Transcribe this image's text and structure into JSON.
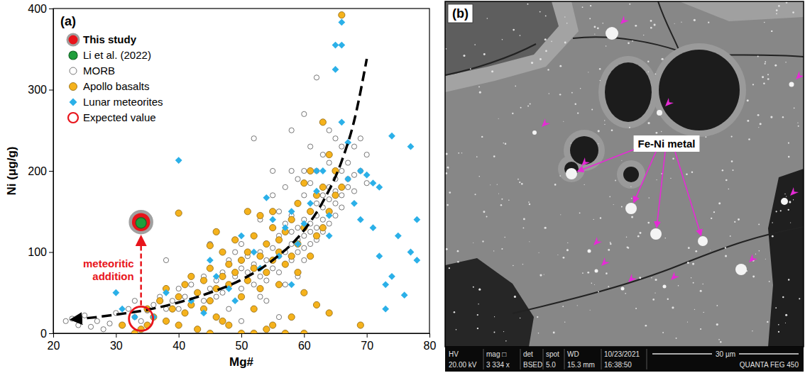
{
  "chart_data": {
    "type": "scatter",
    "panel_label": "(a)",
    "x_label": "Mg#",
    "y_label": "Ni (μg/g)",
    "xlim": [
      20,
      80
    ],
    "ylim": [
      0,
      400
    ],
    "xticks": [
      20,
      30,
      40,
      50,
      60,
      70,
      80
    ],
    "yticks": [
      0,
      100,
      200,
      300,
      400
    ],
    "grid": false,
    "legend": "upper left",
    "series": [
      {
        "name": "This study",
        "color": "#e8141b",
        "marker": "big-circle",
        "x": [
          34
        ],
        "values": [
          137
        ]
      },
      {
        "name": "Li et al. (2022)",
        "color": "#1f9e3c",
        "marker": "medium-circle",
        "x": [
          34
        ],
        "values": [
          136
        ]
      },
      {
        "name": "MORB",
        "color": "#555555",
        "marker": "open-circle",
        "x": [
          22,
          23,
          24,
          25,
          26,
          27,
          28,
          29,
          30,
          31,
          32,
          33,
          34,
          35,
          36,
          37,
          38,
          39,
          40,
          40,
          41,
          42,
          42,
          43,
          44,
          44,
          45,
          45,
          46,
          46,
          47,
          47,
          48,
          48,
          49,
          49,
          50,
          50,
          50,
          51,
          51,
          52,
          52,
          52,
          53,
          53,
          53,
          54,
          54,
          54,
          55,
          55,
          55,
          55,
          56,
          56,
          56,
          56,
          57,
          57,
          57,
          57,
          58,
          58,
          58,
          58,
          58,
          59,
          59,
          59,
          59,
          60,
          60,
          60,
          60,
          60,
          60,
          61,
          61,
          61,
          61,
          61,
          62,
          62,
          62,
          62,
          62,
          63,
          63,
          63,
          63,
          63,
          64,
          64,
          64,
          64,
          64,
          65,
          65,
          65,
          65,
          65,
          66,
          66,
          66,
          66,
          67,
          67,
          67,
          68,
          68,
          68,
          69,
          69,
          70,
          70,
          59,
          57,
          54,
          52,
          56,
          50,
          45,
          62,
          58,
          55,
          63,
          64,
          61,
          60,
          59,
          53,
          48,
          38,
          33
        ],
        "values": [
          15,
          18,
          10,
          22,
          8,
          15,
          5,
          12,
          25,
          10,
          30,
          20,
          15,
          28,
          35,
          45,
          30,
          40,
          55,
          30,
          45,
          60,
          35,
          50,
          70,
          40,
          55,
          80,
          45,
          65,
          75,
          50,
          90,
          60,
          70,
          100,
          55,
          80,
          110,
          75,
          95,
          60,
          120,
          85,
          100,
          70,
          140,
          90,
          110,
          65,
          80,
          105,
          130,
          170,
          95,
          120,
          75,
          150,
          100,
          135,
          85,
          180,
          110,
          90,
          145,
          125,
          200,
          100,
          130,
          160,
          115,
          105,
          140,
          120,
          170,
          90,
          270,
          125,
          150,
          110,
          185,
          135,
          130,
          160,
          145,
          200,
          115,
          140,
          170,
          155,
          125,
          220,
          150,
          180,
          135,
          210,
          165,
          160,
          190,
          145,
          240,
          175,
          170,
          200,
          155,
          230,
          180,
          210,
          190,
          195,
          230,
          175,
          200,
          240,
          220,
          185,
          190,
          60,
          40,
          240,
          20,
          15,
          110,
          315,
          250,
          200,
          260,
          250,
          230,
          200,
          70,
          45,
          30,
          90,
          40
        ]
      },
      {
        "name": "Apollo basalts",
        "color": "#f5b21c",
        "marker": "circle",
        "x": [
          33,
          34,
          35,
          35,
          36,
          37,
          38,
          38,
          39,
          40,
          40,
          40,
          41,
          41,
          42,
          42,
          43,
          43,
          44,
          44,
          45,
          45,
          45,
          46,
          46,
          46,
          47,
          47,
          48,
          48,
          48,
          49,
          49,
          50,
          50,
          50,
          51,
          51,
          51,
          52,
          52,
          52,
          53,
          53,
          53,
          54,
          54,
          54,
          55,
          55,
          55,
          56,
          56,
          56,
          57,
          57,
          57,
          58,
          58,
          58,
          59,
          59,
          59,
          60,
          60,
          60,
          61,
          61,
          61,
          62,
          62,
          62,
          63,
          63,
          63,
          64,
          64,
          64,
          65,
          65,
          66,
          66,
          69,
          31,
          60,
          55,
          45,
          52,
          47
        ],
        "values": [
          0,
          5,
          10,
          30,
          20,
          40,
          15,
          55,
          30,
          148,
          10,
          45,
          60,
          25,
          35,
          70,
          50,
          5,
          65,
          30,
          80,
          40,
          108,
          55,
          125,
          20,
          70,
          100,
          60,
          85,
          10,
          75,
          115,
          0,
          90,
          45,
          150,
          100,
          65,
          80,
          120,
          30,
          145,
          95,
          55,
          110,
          75,
          5,
          130,
          90,
          150,
          100,
          60,
          115,
          125,
          85,
          0,
          140,
          95,
          20,
          160,
          110,
          75,
          130,
          185,
          50,
          150,
          200,
          95,
          170,
          120,
          35,
          260,
          180,
          130,
          220,
          150,
          25,
          200,
          170,
          392,
          180,
          10,
          10,
          0,
          10,
          0,
          0,
          15
        ]
      },
      {
        "name": "Lunar meteorites",
        "color": "#2bb0e8",
        "marker": "diamond",
        "x": [
          30,
          31,
          33,
          36,
          38,
          40,
          42,
          45,
          46,
          48,
          50,
          52,
          54,
          55,
          56,
          57,
          58,
          59,
          60,
          61,
          62,
          63,
          64,
          65,
          65,
          66,
          66,
          66,
          67,
          68,
          69,
          70,
          71,
          72,
          73,
          73,
          74,
          74,
          75,
          76,
          77,
          77,
          78,
          78,
          64,
          62,
          58,
          53,
          49,
          44,
          67,
          69,
          71,
          72
        ],
        "values": [
          50,
          30,
          20,
          20,
          50,
          213,
          40,
          90,
          70,
          55,
          120,
          100,
          167,
          140,
          95,
          130,
          150,
          110,
          135,
          160,
          175,
          200,
          145,
          355,
          325,
          383,
          355,
          260,
          235,
          160,
          200,
          195,
          130,
          180,
          60,
          30,
          243,
          70,
          120,
          47,
          230,
          100,
          90,
          140,
          120,
          200,
          60,
          80,
          40,
          25,
          190,
          140,
          185,
          95
        ]
      },
      {
        "name": "Expected value",
        "color": "#e8141b",
        "marker": "ring",
        "x": [
          34
        ],
        "values": [
          18
        ]
      }
    ],
    "trend": {
      "color": "#000000",
      "line_style": "dashed",
      "x": [
        23,
        27,
        30,
        35,
        40,
        45,
        50,
        55,
        60,
        63,
        66,
        68,
        70
      ],
      "values": [
        17,
        20,
        23,
        29,
        38,
        50,
        66,
        90,
        127,
        162,
        212,
        262,
        338
      ]
    },
    "annotations": [
      {
        "text": "meteoritic addition",
        "color": "#e8141b"
      }
    ]
  },
  "micrograph": {
    "panel_label": "(b)",
    "label": "Fe-Ni metal",
    "info_bar": {
      "headers": [
        "HV",
        "mag □",
        "det",
        "spot",
        "WD",
        "10/23/2021"
      ],
      "values": [
        "20.00 kV",
        "3 334 x",
        "BSED",
        "5.0",
        "15.3 mm",
        "16:38:50"
      ],
      "scale_bar": "30 µm",
      "instrument": "QUANTA FEG 450"
    }
  }
}
